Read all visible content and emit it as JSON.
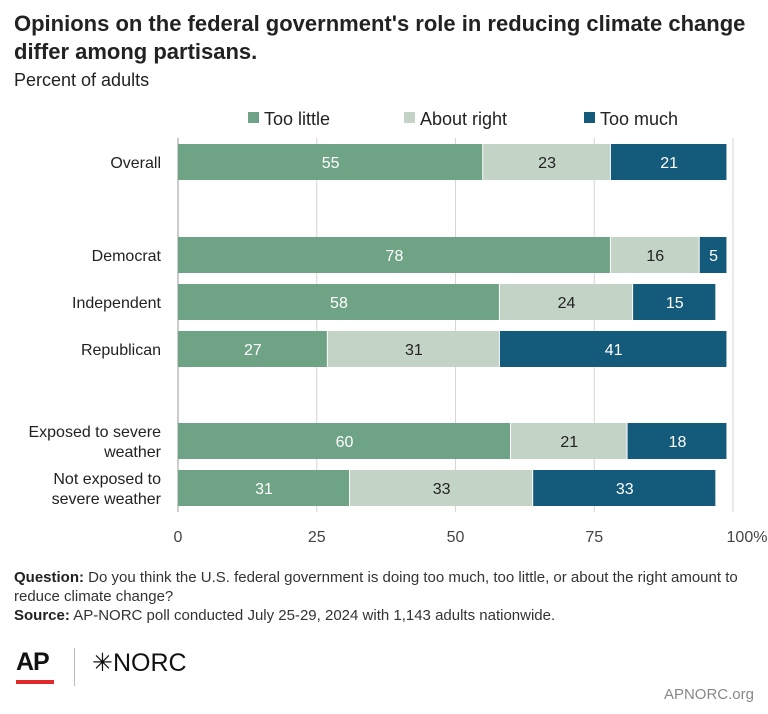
{
  "title": "Opinions on the federal government's role in reducing climate change differ among partisans.",
  "subtitle": "Percent of adults",
  "chart_data": {
    "type": "bar",
    "orientation": "horizontal",
    "stacked": true,
    "categories": [
      "Overall",
      "Democrat",
      "Independent",
      "Republican",
      "Exposed to severe weather",
      "Not exposed to severe weather"
    ],
    "series": [
      {
        "name": "Too little",
        "color": "#6fa386",
        "label_color": "#ffffff",
        "values": [
          55,
          78,
          58,
          27,
          60,
          31
        ]
      },
      {
        "name": "About right",
        "color": "#c3d3c6",
        "label_color": "#222222",
        "values": [
          23,
          16,
          24,
          31,
          21,
          33
        ]
      },
      {
        "name": "Too much",
        "color": "#145a7a",
        "label_color": "#ffffff",
        "values": [
          21,
          5,
          15,
          41,
          18,
          33
        ]
      }
    ],
    "xlim": [
      0,
      100
    ],
    "x_ticks": [
      "0",
      "25",
      "50",
      "75",
      "100%"
    ],
    "grid": true,
    "legend_position": "top"
  },
  "footer": {
    "question_label": "Question:",
    "question_text": "Do you think the U.S. federal government is doing too much, too little, or about the right amount to reduce climate change?",
    "source_label": "Source:",
    "source_text": "AP-NORC poll conducted July 25-29, 2024 with 1,143 adults nationwide."
  },
  "logos": {
    "ap": "AP",
    "norc": "✳NORC",
    "ap_red": "#e02a2a"
  },
  "site": "APNORC.org"
}
